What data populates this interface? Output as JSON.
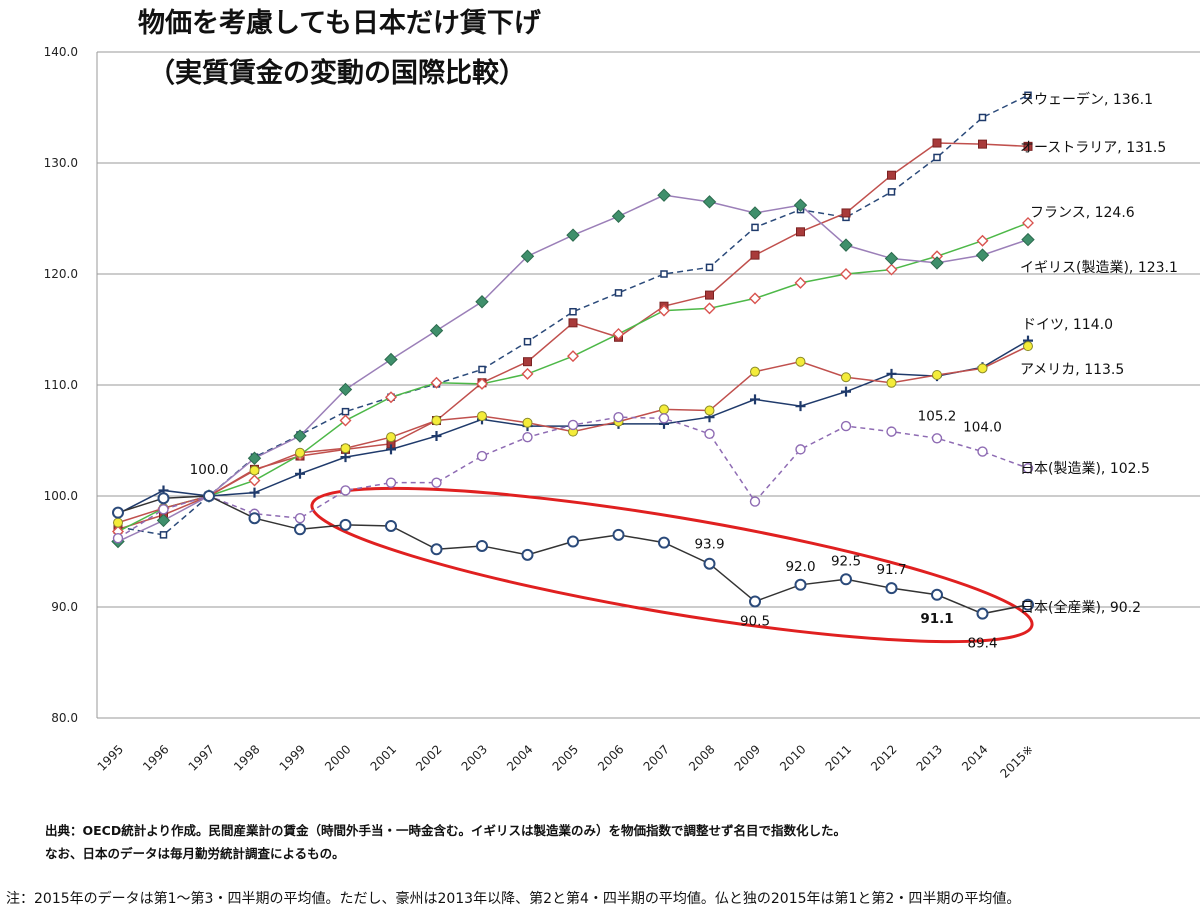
{
  "chart_data": {
    "type": "line",
    "title": "物価を考慮しても日本だけ賃下げ",
    "subtitle": "（実質賃金の変動の国際比較）",
    "ylim": [
      80,
      140
    ],
    "yticks": [
      "80.0",
      "90.0",
      "100.0",
      "110.0",
      "120.0",
      "130.0",
      "140.0"
    ],
    "categories": [
      "1995",
      "1996",
      "1997",
      "1998",
      "1999",
      "2000",
      "2001",
      "2002",
      "2003",
      "2004",
      "2005",
      "2006",
      "2007",
      "2008",
      "2009",
      "2010",
      "2011",
      "2012",
      "2013",
      "2014",
      "2015※"
    ],
    "grid": true,
    "series": [
      {
        "name": "スウェーデン",
        "end_label": "スウェーデン, 136.1",
        "color": "#2b4a7a",
        "dash": "6,4",
        "marker": "square-open",
        "values": [
          97.2,
          96.5,
          100.0,
          103.5,
          105.5,
          107.6,
          108.9,
          110.1,
          111.4,
          113.9,
          116.6,
          118.3,
          120.0,
          120.6,
          124.2,
          125.8,
          125.1,
          127.4,
          130.5,
          134.1,
          136.1
        ]
      },
      {
        "name": "オーストラリア",
        "end_label": "オーストラリア, 131.5",
        "color": "#c0504d",
        "dash": "",
        "marker": "square-filled",
        "values": [
          97.0,
          98.3,
          100.0,
          102.4,
          103.6,
          104.2,
          104.7,
          106.8,
          110.2,
          112.1,
          115.6,
          114.3,
          117.1,
          118.1,
          121.7,
          123.8,
          125.5,
          128.9,
          131.8,
          131.7,
          131.5
        ]
      },
      {
        "name": "フランス",
        "end_label": "フランス, 124.6",
        "color": "#4db848",
        "dash": "",
        "marker": "diamond-open",
        "values": [
          96.8,
          98.9,
          100.0,
          101.4,
          103.7,
          106.8,
          108.9,
          110.2,
          110.1,
          111.0,
          112.6,
          114.6,
          116.7,
          116.9,
          117.8,
          119.2,
          120.0,
          120.4,
          121.6,
          123.0,
          124.6
        ]
      },
      {
        "name": "イギリス(製造業)",
        "end_label": "イギリス(製造業), 123.1",
        "color": "#9b7fb8",
        "dash": "",
        "marker": "diamond-filled",
        "values": [
          95.9,
          97.8,
          100.0,
          103.4,
          105.4,
          109.6,
          112.3,
          114.9,
          117.5,
          121.6,
          123.5,
          125.2,
          127.1,
          126.5,
          125.5,
          126.2,
          122.6,
          121.4,
          121.0,
          121.7,
          123.1
        ]
      },
      {
        "name": "ドイツ",
        "end_label": "ドイツ, 114.0",
        "color": "#1f3a6b",
        "dash": "",
        "marker": "plus",
        "values": [
          98.4,
          100.5,
          100.0,
          100.3,
          102.0,
          103.5,
          104.2,
          105.4,
          106.9,
          106.3,
          106.3,
          106.5,
          106.5,
          107.1,
          108.7,
          108.1,
          109.4,
          111.0,
          110.8,
          111.6,
          114.0
        ]
      },
      {
        "name": "アメリカ",
        "end_label": "アメリカ, 113.5",
        "color": "#c0504d",
        "dash": "",
        "marker": "circle-yellow",
        "values": [
          97.6,
          98.9,
          100.0,
          102.3,
          103.9,
          104.3,
          105.3,
          106.8,
          107.2,
          106.6,
          105.8,
          106.7,
          107.8,
          107.7,
          111.2,
          112.1,
          110.7,
          110.2,
          110.9,
          111.5,
          113.5
        ]
      },
      {
        "name": "日本(製造業)",
        "end_label": "日本(製造業), 102.5",
        "color": "#8e6bb3",
        "dash": "5,4",
        "marker": "circle-open-purple",
        "values": [
          96.2,
          98.8,
          100.0,
          98.4,
          98.0,
          100.5,
          101.2,
          101.2,
          103.6,
          105.3,
          106.4,
          107.1,
          107.0,
          105.6,
          99.5,
          104.2,
          106.3,
          105.8,
          105.2,
          104.0,
          102.5
        ]
      },
      {
        "name": "日本(全産業)",
        "end_label": "日本(全産業), 90.2",
        "color": "#333333",
        "dash": "",
        "marker": "circle-open-blue",
        "values": [
          98.5,
          99.8,
          100.0,
          98.0,
          97.0,
          97.4,
          97.3,
          95.2,
          95.5,
          94.7,
          95.9,
          96.5,
          95.8,
          93.9,
          90.5,
          92.0,
          92.5,
          91.7,
          91.1,
          89.4,
          90.2
        ]
      }
    ],
    "annotations": [
      {
        "text": "100.0",
        "x": "1997",
        "y": 100.0
      },
      {
        "text": "105.2",
        "x": "2013",
        "y": 105.2
      },
      {
        "text": "104.0",
        "x": "2014",
        "y": 104.0
      },
      {
        "text": "93.9",
        "x": "2008",
        "y": 93.9
      },
      {
        "text": "90.5",
        "x": "2009",
        "y": 90.5
      },
      {
        "text": "92.0",
        "x": "2010",
        "y": 92.0
      },
      {
        "text": "92.5",
        "x": "2011",
        "y": 92.5
      },
      {
        "text": "91.7",
        "x": "2012",
        "y": 91.7
      },
      {
        "text": "91.1",
        "x": "2013",
        "y": 91.1
      },
      {
        "text": "89.4",
        "x": "2014",
        "y": 89.4
      }
    ],
    "highlight": {
      "shape": "ellipse",
      "color": "#e02020",
      "range": [
        "2000",
        "2015※"
      ]
    },
    "source": "出典：OECD統計より作成。民間産業計の賃金（時間外手当・一時金含む。イギリスは製造業のみ）を物価指数で調整せず名目で指数化した。",
    "source2": "なお、日本のデータは毎月勤労統計調査によるもの。",
    "note": "注：2015年のデータは第1～第3・四半期の平均値。ただし、豪州は2013年以降、第2と第4・四半期の平均値。仏と独の2015年は第1と第2・四半期の平均値。"
  }
}
